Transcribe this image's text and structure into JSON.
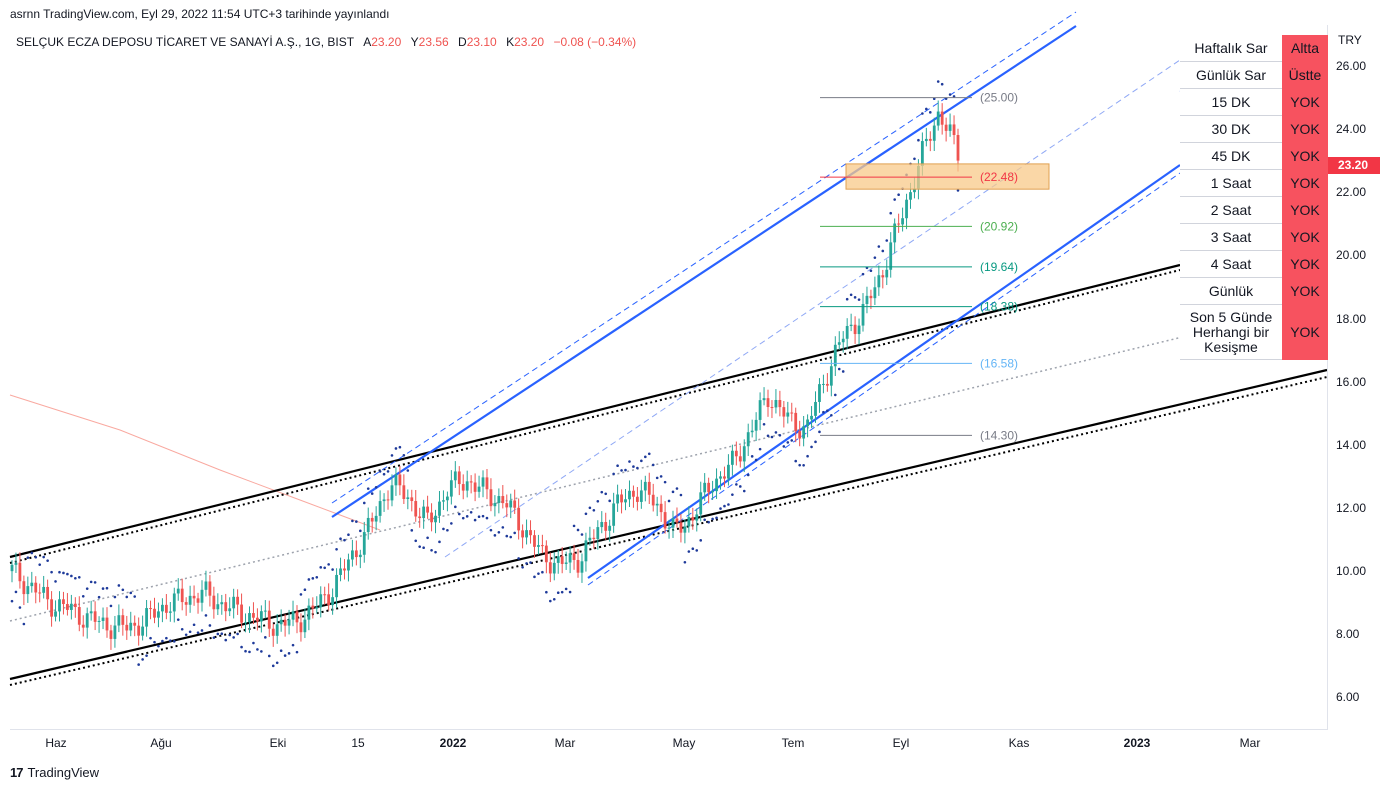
{
  "header": {
    "published": "asrnn TradingView.com, Eyl 29, 2022 11:54 UTC+3 tarihinde yayınlandı",
    "symbol": "SELÇUK ECZA DEPOSU TİCARET VE SANAYİ A.Ş., 1G, BIST",
    "open_label": "A",
    "open": "23.20",
    "high_label": "Y",
    "high": "23.56",
    "low_label": "D",
    "low": "23.10",
    "close_label": "K",
    "close": "23.20",
    "change": "−0.08 (−0.34%)"
  },
  "price_axis": {
    "currency": "TRY",
    "ticks": [
      "26.00",
      "24.00",
      "22.00",
      "20.00",
      "18.00",
      "16.00",
      "14.00",
      "12.00",
      "10.00",
      "8.00",
      "6.00"
    ],
    "current_price": "23.20"
  },
  "time_axis": {
    "labels": [
      "Haz",
      "Ağu",
      "Eki",
      "15",
      "2022",
      "Mar",
      "May",
      "Tem",
      "Eyl",
      "Kas",
      "2023",
      "Mar"
    ]
  },
  "fib_levels": [
    "(25.00)",
    "(22.48)",
    "(20.92)",
    "(19.64)",
    "(18.38)",
    "(16.58)",
    "(14.30)"
  ],
  "signal_table": {
    "rows": [
      {
        "label": "Haftalık Sar",
        "value": "Altta"
      },
      {
        "label": "Günlük Sar",
        "value": "Üstte"
      },
      {
        "label": "15 DK",
        "value": "YOK"
      },
      {
        "label": "30 DK",
        "value": "YOK"
      },
      {
        "label": "45 DK",
        "value": "YOK"
      },
      {
        "label": "1 Saat",
        "value": "YOK"
      },
      {
        "label": "2 Saat",
        "value": "YOK"
      },
      {
        "label": "3 Saat",
        "value": "YOK"
      },
      {
        "label": "4 Saat",
        "value": "YOK"
      },
      {
        "label": "Günlük",
        "value": "YOK"
      },
      {
        "label": "Son 5 Günde Herhangi bir Kesişme",
        "value": "YOK"
      }
    ]
  },
  "brand": "TradingView",
  "colors": {
    "up": "#26a69a",
    "down": "#ef5350",
    "channel": "#2962ff",
    "signal_red": "#f7525f",
    "fib_zone": "#f8c98a"
  },
  "chart_data": {
    "type": "candlestick",
    "y_range": [
      5.0,
      27.3
    ],
    "x_labels": [
      "Haz",
      "Ağu",
      "Eki",
      "15",
      "2022",
      "Mar",
      "May",
      "Tem",
      "Eyl",
      "Kas",
      "2023",
      "Mar"
    ],
    "close_series": [
      10.0,
      9.5,
      9.0,
      8.8,
      8.5,
      8.3,
      8.2,
      8.4,
      8.9,
      9.1,
      9.3,
      9.0,
      8.7,
      8.5,
      8.3,
      8.4,
      8.8,
      9.5,
      10.5,
      11.5,
      12.8,
      12.3,
      11.5,
      12.6,
      12.9,
      12.5,
      12.2,
      11.4,
      10.5,
      10.2,
      10.4,
      11.3,
      12.1,
      12.6,
      12.2,
      11.2,
      11.8,
      12.8,
      13.3,
      14.4,
      15.6,
      14.8,
      14.5,
      16.2,
      17.5,
      18.2,
      19.5,
      21.2,
      23.0,
      24.6,
      23.2
    ],
    "fib_values": [
      25.0,
      22.48,
      20.92,
      19.64,
      18.38,
      16.58,
      14.3
    ]
  }
}
